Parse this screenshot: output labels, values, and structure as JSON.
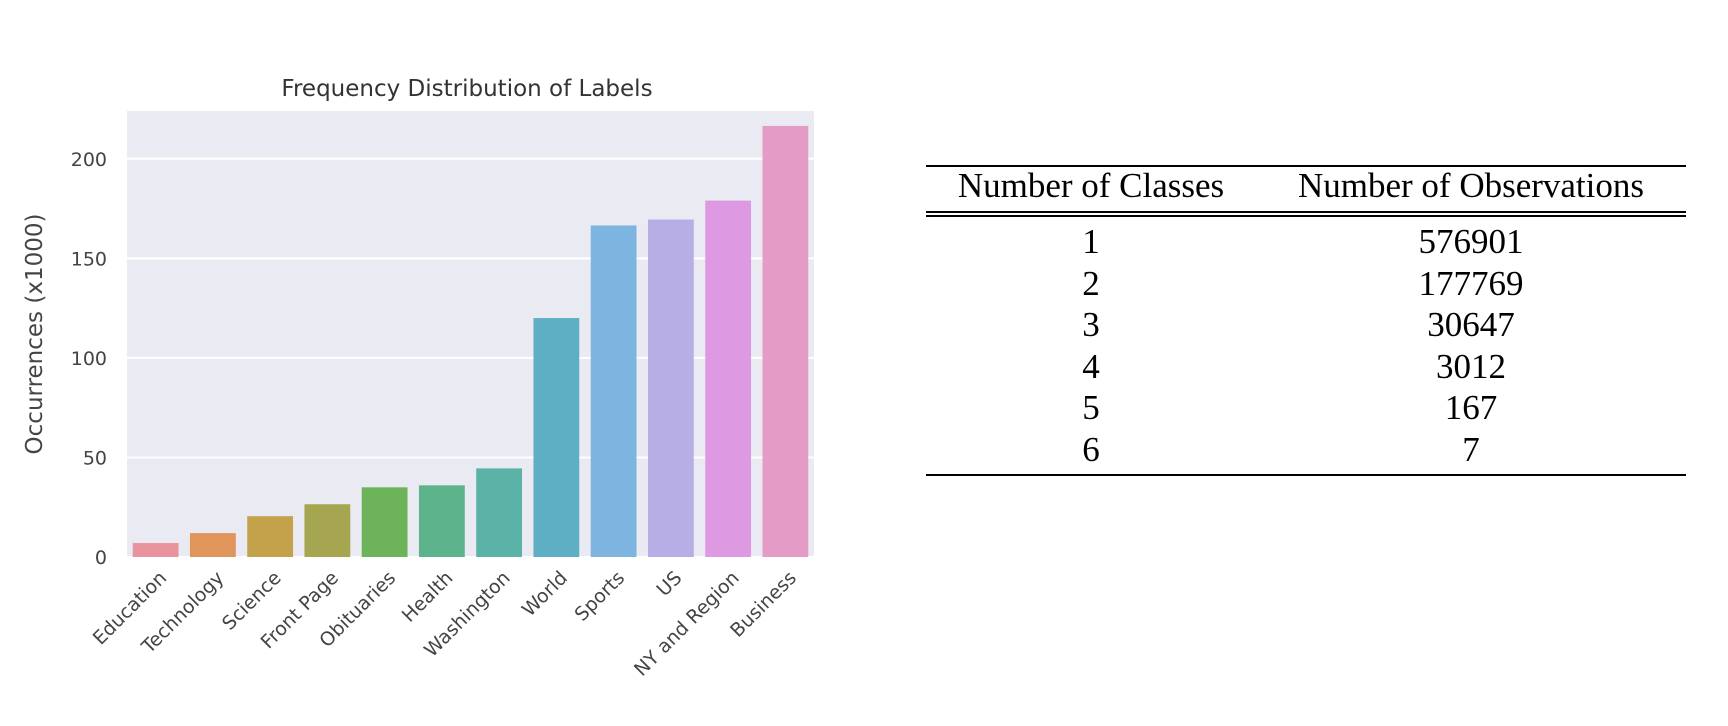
{
  "chart_data": {
    "type": "bar",
    "title": "Frequency Distribution of Labels",
    "xlabel": "",
    "ylabel": "Occurrences (x1000)",
    "ylim": [
      0,
      224
    ],
    "yticks": [
      0,
      50,
      100,
      150,
      200
    ],
    "grid": true,
    "categories": [
      "Education",
      "Technology",
      "Science",
      "Front Page",
      "Obituaries",
      "Health",
      "Washington",
      "World",
      "Sports",
      "US",
      "NY and Region",
      "Business"
    ],
    "values": [
      7,
      12,
      20.5,
      26.5,
      35,
      36,
      44.5,
      120,
      166.5,
      169.5,
      179,
      216.5
    ],
    "colors": [
      "#e8939d",
      "#e0955b",
      "#c4a24c",
      "#a6a650",
      "#6cb35a",
      "#5db38b",
      "#5bb2a6",
      "#5eaec4",
      "#7db4e0",
      "#b7aee6",
      "#dd9ae2",
      "#e49bc6"
    ]
  },
  "table": {
    "headers": [
      "Number of Classes",
      "Number of Observations"
    ],
    "rows": [
      [
        "1",
        "576901"
      ],
      [
        "2",
        "177769"
      ],
      [
        "3",
        "30647"
      ],
      [
        "4",
        "3012"
      ],
      [
        "5",
        "167"
      ],
      [
        "6",
        "7"
      ]
    ]
  }
}
